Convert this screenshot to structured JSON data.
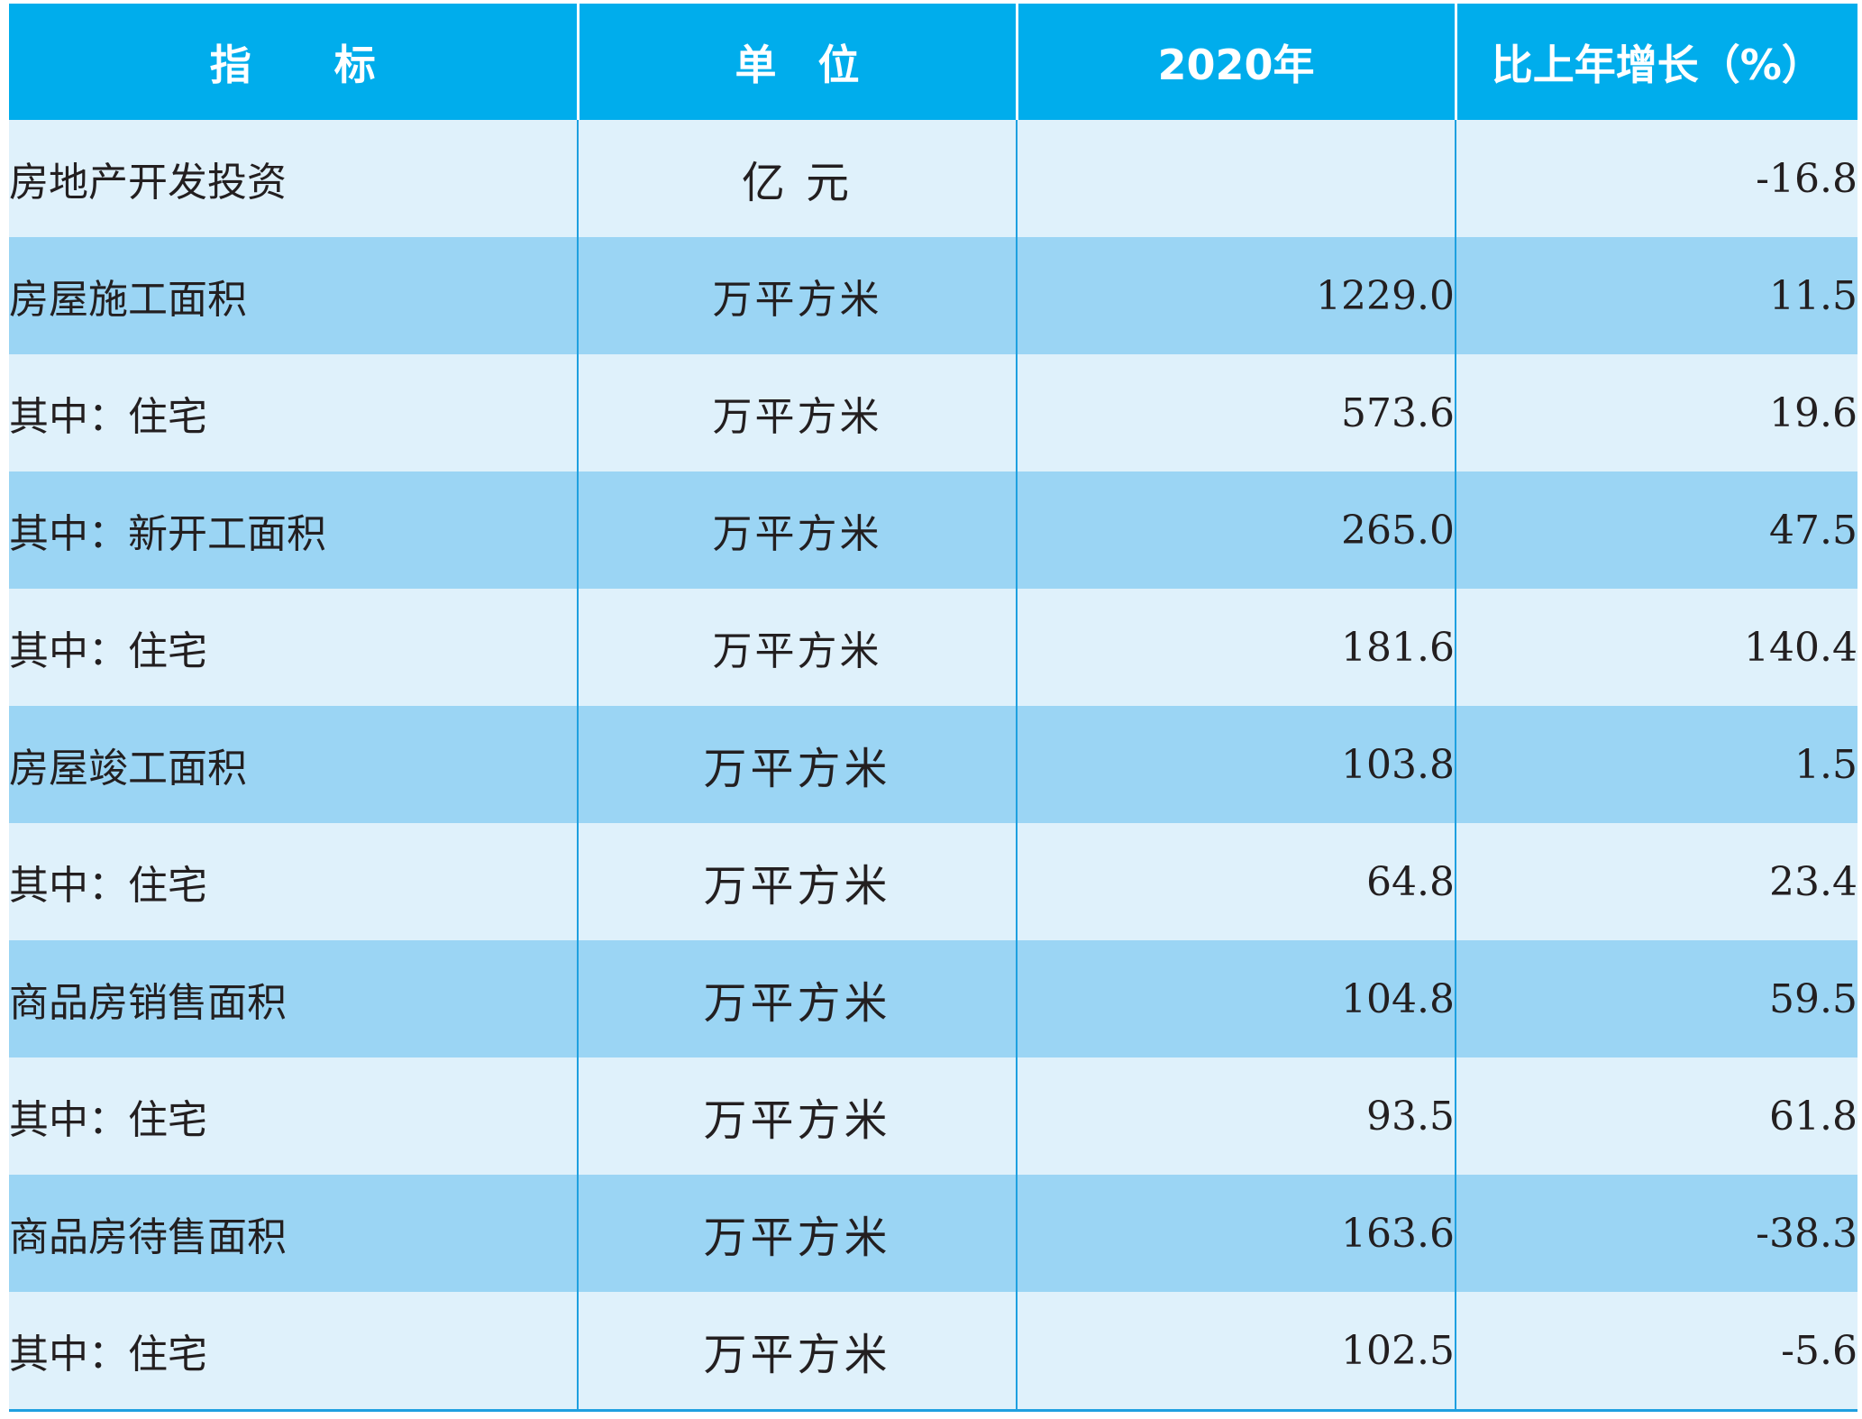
{
  "table": {
    "headers": [
      "指　　标",
      "单　位",
      "2020年",
      "比上年增长（%）"
    ],
    "rows": [
      {
        "indicator": "房地产开发投资",
        "level": 0,
        "unit": "亿 元",
        "value_2020": "",
        "growth": "-16.8",
        "unit_big": true
      },
      {
        "indicator": "房屋施工面积",
        "level": 0,
        "unit": "万平方米",
        "value_2020": "1229.0",
        "growth": "11.5",
        "unit_big": false
      },
      {
        "indicator": "其中：住宅",
        "level": 1,
        "unit": "万平方米",
        "value_2020": "573.6",
        "growth": "19.6",
        "unit_big": false
      },
      {
        "indicator": "其中：新开工面积",
        "level": 1,
        "unit": "万平方米",
        "value_2020": "265.0",
        "growth": "47.5",
        "unit_big": false
      },
      {
        "indicator": "其中：住宅",
        "level": 2,
        "unit": "万平方米",
        "value_2020": "181.6",
        "growth": "140.4",
        "unit_big": false
      },
      {
        "indicator": "房屋竣工面积",
        "level": 0,
        "unit": "万平方米",
        "value_2020": "103.8",
        "growth": "1.5",
        "unit_big": true
      },
      {
        "indicator": "其中：住宅",
        "level": 1,
        "unit": "万平方米",
        "value_2020": "64.8",
        "growth": "23.4",
        "unit_big": true
      },
      {
        "indicator": "商品房销售面积",
        "level": 0,
        "unit": "万平方米",
        "value_2020": "104.8",
        "growth": "59.5",
        "unit_big": true
      },
      {
        "indicator": "其中：住宅",
        "level": 1,
        "unit": "万平方米",
        "value_2020": "93.5",
        "growth": "61.8",
        "unit_big": true
      },
      {
        "indicator": "商品房待售面积",
        "level": 0,
        "unit": "万平方米",
        "value_2020": "163.6",
        "growth": "-38.3",
        "unit_big": true
      },
      {
        "indicator": "其中：住宅",
        "level": 1,
        "unit": "万平方米",
        "value_2020": "102.5",
        "growth": "-5.6",
        "unit_big": true
      }
    ]
  },
  "colors": {
    "header_bg": "#00adec",
    "row_light": "#dff1fb",
    "row_dark": "#9bd5f4",
    "grid_line": "#1ea0e0",
    "text": "#231f20"
  }
}
